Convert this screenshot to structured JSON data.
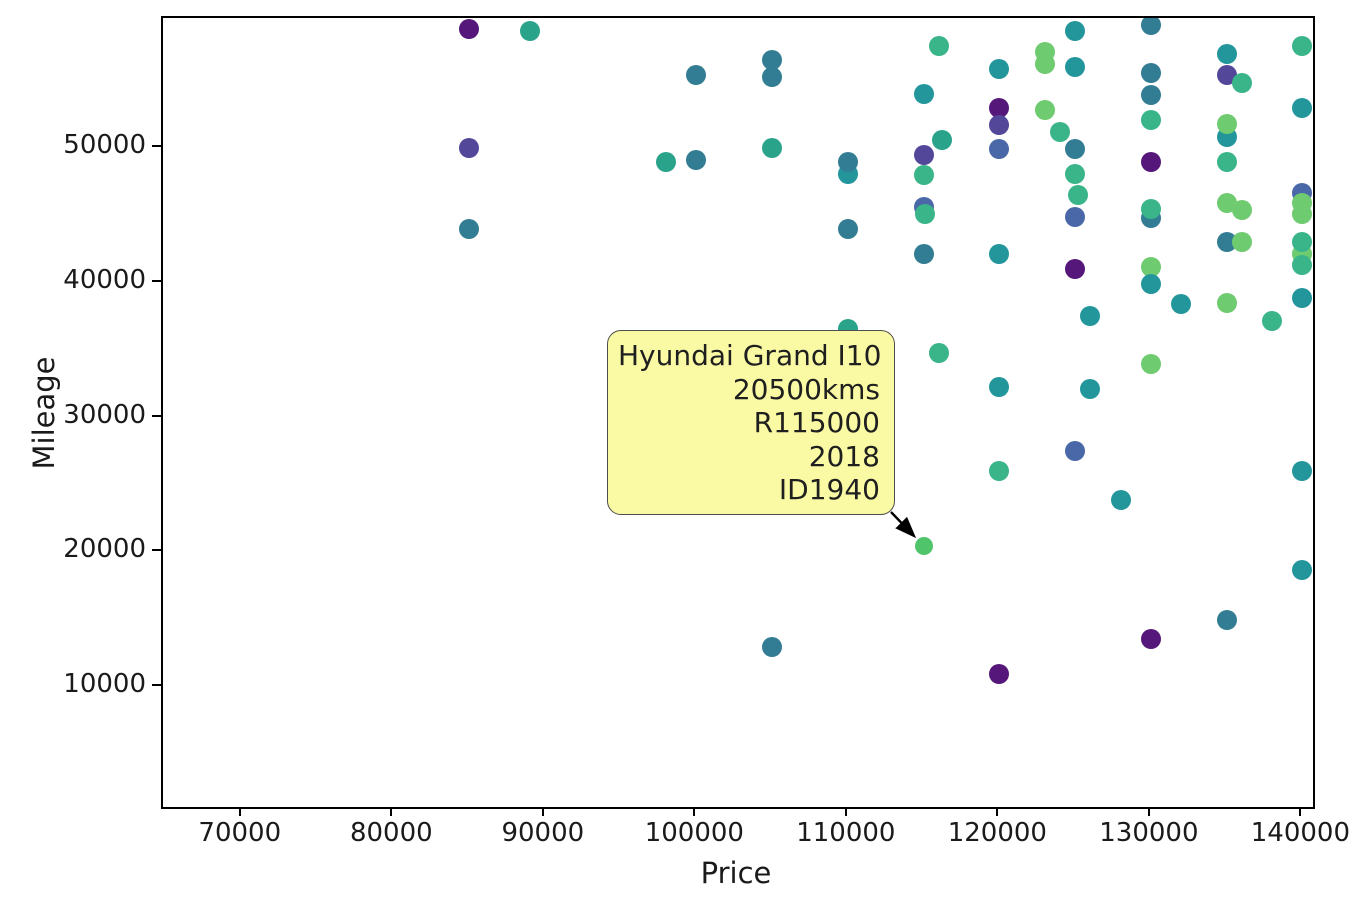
{
  "chart_data": {
    "type": "scatter",
    "title": "",
    "xlabel": "Price",
    "ylabel": "Mileage",
    "xlim": [
      64800,
      140700
    ],
    "ylim": [
      1100,
      59650
    ],
    "x_ticks": [
      "70000",
      "80000",
      "90000",
      "100000",
      "110000",
      "120000",
      "130000",
      "140000"
    ],
    "x_tick_values": [
      70000,
      80000,
      90000,
      100000,
      110000,
      120000,
      130000,
      140000
    ],
    "y_ticks": [
      "10000",
      "20000",
      "30000",
      "40000",
      "50000"
    ],
    "y_tick_values": [
      10000,
      20000,
      30000,
      40000,
      50000
    ],
    "grid": false,
    "legend": null,
    "point_radius": 10,
    "colors": {
      "purple": "#55187a",
      "indigo": "#53479a",
      "slate": "#4a68a8",
      "steel": "#337d94",
      "teal": "#23969c",
      "jade": "#2aa38b",
      "seagreen": "#3ab489",
      "green": "#50c46a",
      "lgreen": "#6fcb6f"
    },
    "points": [
      [
        85000,
        58800,
        "purple"
      ],
      [
        89000,
        58700,
        "jade"
      ],
      [
        85000,
        50000,
        "indigo"
      ],
      [
        85000,
        44000,
        "steel"
      ],
      [
        98000,
        49000,
        "jade"
      ],
      [
        100000,
        55400,
        "steel"
      ],
      [
        100000,
        49100,
        "steel"
      ],
      [
        105000,
        56500,
        "steel"
      ],
      [
        105000,
        55300,
        "steel"
      ],
      [
        105000,
        50000,
        "jade"
      ],
      [
        105000,
        13000,
        "steel"
      ],
      [
        110000,
        48100,
        "teal"
      ],
      [
        110000,
        49000,
        "steel"
      ],
      [
        110000,
        44000,
        "steel"
      ],
      [
        110000,
        36600,
        "jade"
      ],
      [
        116000,
        57600,
        "seagreen"
      ],
      [
        115000,
        54000,
        "teal"
      ],
      [
        116200,
        50600,
        "jade"
      ],
      [
        115000,
        49500,
        "indigo"
      ],
      [
        115000,
        48000,
        "seagreen"
      ],
      [
        115000,
        45600,
        "slate"
      ],
      [
        115100,
        45100,
        "seagreen"
      ],
      [
        115000,
        42100,
        "steel"
      ],
      [
        116000,
        34800,
        "seagreen"
      ],
      [
        115000,
        20500,
        "green",
        9
      ],
      [
        120000,
        55900,
        "teal"
      ],
      [
        120000,
        53000,
        "purple"
      ],
      [
        120000,
        51700,
        "indigo"
      ],
      [
        120000,
        49900,
        "slate"
      ],
      [
        120000,
        42100,
        "teal"
      ],
      [
        120000,
        32300,
        "teal"
      ],
      [
        120000,
        26000,
        "seagreen"
      ],
      [
        120000,
        11000,
        "purple"
      ],
      [
        123000,
        57100,
        "lgreen"
      ],
      [
        123000,
        56200,
        "lgreen"
      ],
      [
        123000,
        52800,
        "lgreen"
      ],
      [
        124000,
        51200,
        "seagreen"
      ],
      [
        125000,
        58700,
        "teal"
      ],
      [
        125000,
        56000,
        "teal"
      ],
      [
        125000,
        49900,
        "steel"
      ],
      [
        125000,
        48100,
        "seagreen"
      ],
      [
        125200,
        46500,
        "seagreen"
      ],
      [
        125000,
        44900,
        "slate"
      ],
      [
        125000,
        41000,
        "purple"
      ],
      [
        125000,
        27500,
        "slate"
      ],
      [
        126000,
        37500,
        "teal"
      ],
      [
        126000,
        32100,
        "teal"
      ],
      [
        128000,
        23900,
        "teal"
      ],
      [
        130000,
        59100,
        "steel"
      ],
      [
        130000,
        55600,
        "steel"
      ],
      [
        130000,
        53900,
        "steel"
      ],
      [
        130000,
        52100,
        "seagreen"
      ],
      [
        130000,
        49000,
        "purple"
      ],
      [
        130000,
        44800,
        "steel"
      ],
      [
        130000,
        45500,
        "seagreen"
      ],
      [
        130000,
        41200,
        "lgreen"
      ],
      [
        130000,
        39900,
        "teal"
      ],
      [
        130000,
        34000,
        "lgreen"
      ],
      [
        130000,
        13600,
        "purple"
      ],
      [
        132000,
        38400,
        "teal"
      ],
      [
        135000,
        55400,
        "indigo"
      ],
      [
        135000,
        57000,
        "teal"
      ],
      [
        136000,
        54800,
        "seagreen"
      ],
      [
        135000,
        50800,
        "teal"
      ],
      [
        135000,
        51800,
        "lgreen"
      ],
      [
        135000,
        49000,
        "seagreen"
      ],
      [
        135000,
        45900,
        "lgreen"
      ],
      [
        136000,
        45400,
        "lgreen"
      ],
      [
        135000,
        43000,
        "steel"
      ],
      [
        136000,
        43000,
        "lgreen"
      ],
      [
        135000,
        38500,
        "lgreen"
      ],
      [
        135000,
        15000,
        "steel"
      ],
      [
        138000,
        37200,
        "seagreen"
      ],
      [
        140000,
        57600,
        "seagreen"
      ],
      [
        140000,
        53000,
        "teal"
      ],
      [
        140000,
        46700,
        "slate"
      ],
      [
        140000,
        45900,
        "lgreen"
      ],
      [
        140000,
        45100,
        "lgreen"
      ],
      [
        140000,
        42100,
        "lgreen"
      ],
      [
        140000,
        41300,
        "seagreen"
      ],
      [
        140000,
        43000,
        "seagreen"
      ],
      [
        140000,
        38900,
        "teal"
      ],
      [
        140000,
        26000,
        "teal"
      ],
      [
        140000,
        18700,
        "teal"
      ]
    ],
    "annotation": {
      "lines": [
        "Hyundai Grand I10",
        "20500kms",
        "R115000",
        "2018",
        "ID1940"
      ],
      "target": {
        "price": 115000,
        "mileage": 20500
      },
      "box_fill": "#fafaa5",
      "box_border": "#4d4d4d",
      "text_color": "#1f1f1f",
      "arrow_color": "#000000"
    }
  }
}
